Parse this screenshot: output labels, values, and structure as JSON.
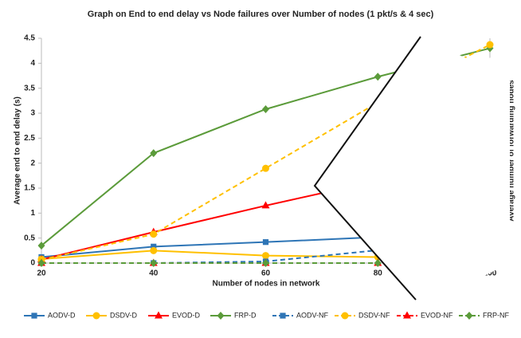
{
  "chart_data": {
    "type": "line",
    "title": "Graph on End to end delay vs Node failures over Number of nodes (1 pkt/s & 4 sec)",
    "x_label": "Number of nodes in network",
    "y_label": "Average end to end delay (s)",
    "y2_label": "Average number of forwarding nodes",
    "x": [
      20,
      40,
      60,
      80,
      100
    ],
    "xlim": [
      20,
      100
    ],
    "xticks": [
      20,
      40,
      60,
      80,
      100
    ],
    "ylim": [
      0,
      4.5
    ],
    "yticks": [
      0,
      0.5,
      1,
      1.5,
      2,
      2.5,
      3,
      3.5,
      4,
      4.5
    ],
    "y2lim": [
      0,
      70
    ],
    "y2ticks": [
      0,
      10,
      20,
      30,
      40,
      50,
      60
    ],
    "series": [
      {
        "name": "AODV-D",
        "color": "#2e75b6",
        "marker": "square",
        "dash": false,
        "values": [
          0.12,
          0.33,
          0.42,
          0.52,
          0.52
        ]
      },
      {
        "name": "DSDV-D",
        "color": "#ffc000",
        "marker": "circle",
        "dash": false,
        "values": [
          0.08,
          0.25,
          0.15,
          0.12,
          0.1
        ]
      },
      {
        "name": "EVOD-D",
        "color": "#ff0000",
        "marker": "triangle",
        "dash": false,
        "values": [
          0.07,
          0.62,
          1.15,
          1.65,
          2.0
        ]
      },
      {
        "name": "FRP-D",
        "color": "#5b9b3a",
        "marker": "diamond",
        "dash": false,
        "values": [
          0.35,
          2.2,
          3.08,
          3.73,
          4.3
        ]
      },
      {
        "name": "AODV-NF",
        "color": "#2e75b6",
        "marker": "square",
        "dash": true,
        "axis": "y2",
        "values": [
          0,
          0,
          0.5,
          4,
          11
        ]
      },
      {
        "name": "DSDV-NF",
        "color": "#ffc000",
        "marker": "circle",
        "dash": true,
        "axis": "y2",
        "values": [
          1,
          9,
          29.5,
          50,
          68
        ]
      },
      {
        "name": "EVOD-NF",
        "color": "#ff0000",
        "marker": "triangle",
        "dash": true,
        "axis": "y2",
        "values": [
          0,
          0,
          0,
          0,
          0
        ]
      },
      {
        "name": "FRP-NF",
        "color": "#5b9b3a",
        "marker": "diamond",
        "dash": true,
        "axis": "y2",
        "values": [
          0,
          0,
          0,
          0,
          0
        ]
      }
    ]
  }
}
